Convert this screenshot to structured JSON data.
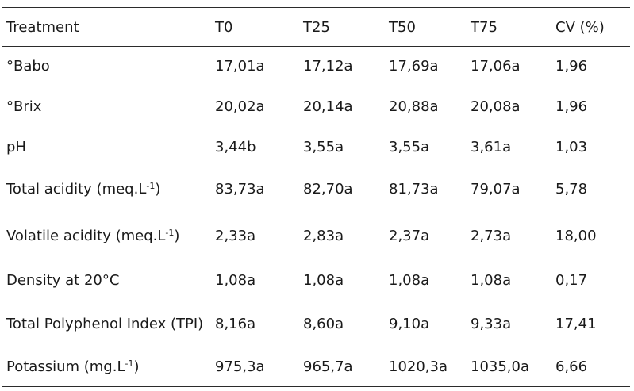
{
  "table": {
    "headers": [
      "Treatment",
      "T0",
      "T25",
      "T50",
      "T75",
      "CV (%)"
    ],
    "rows": [
      {
        "label": "°Babo",
        "unit": "",
        "sup": "",
        "close": "",
        "values": [
          "17,01a",
          "17,12a",
          "17,69a",
          "17,06a",
          "1,96"
        ]
      },
      {
        "label": "°Brix",
        "unit": "",
        "sup": "",
        "close": "",
        "values": [
          "20,02a",
          "20,14a",
          "20,88a",
          "20,08a",
          "1,96"
        ]
      },
      {
        "label": "pH",
        "unit": "",
        "sup": "",
        "close": "",
        "values": [
          "3,44b",
          "3,55a",
          "3,55a",
          "3,61a",
          "1,03"
        ]
      },
      {
        "label": "Total acidity ",
        "unit": "(meq.L",
        "sup": "-1",
        "close": ")",
        "values": [
          "83,73a",
          "82,70a",
          "81,73a",
          "79,07a",
          "5,78"
        ]
      },
      {
        "label": "Volatile acidity ",
        "unit": "(meq.L",
        "sup": "-1",
        "close": ")",
        "values": [
          "2,33a",
          "2,83a",
          "2,37a",
          "2,73a",
          "18,00"
        ]
      },
      {
        "label": "Density at 20°C",
        "unit": "",
        "sup": "",
        "close": "",
        "values": [
          "1,08a",
          "1,08a",
          "1,08a",
          "1,08a",
          "0,17"
        ]
      },
      {
        "label": "Total Polyphenol Index (TPI)",
        "unit": "",
        "sup": "",
        "close": "",
        "values": [
          "8,16a",
          "8,60a",
          "9,10a",
          "9,33a",
          "17,41"
        ]
      },
      {
        "label": "Potassium ",
        "unit": "(mg.L",
        "sup": "-1",
        "close": ")",
        "values": [
          "975,3a",
          "965,7a",
          "1020,3a",
          "1035,0a",
          "6,66"
        ]
      }
    ]
  }
}
